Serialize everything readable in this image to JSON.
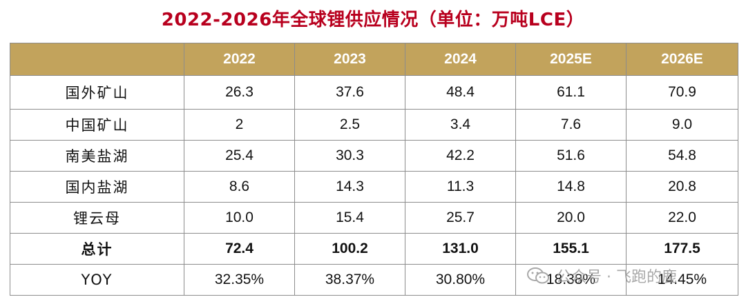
{
  "title": "2022-2026年全球锂供应情况（单位：万吨LCE）",
  "table": {
    "headers": [
      "",
      "2022",
      "2023",
      "2024",
      "2025E",
      "2026E"
    ],
    "rows": [
      {
        "label": "国外矿山",
        "values": [
          "26.3",
          "37.6",
          "48.4",
          "61.1",
          "70.9"
        ]
      },
      {
        "label": "中国矿山",
        "values": [
          "2",
          "2.5",
          "3.4",
          "7.6",
          "9.0"
        ]
      },
      {
        "label": "南美盐湖",
        "values": [
          "25.4",
          "30.3",
          "42.2",
          "51.6",
          "54.8"
        ]
      },
      {
        "label": "国内盐湖",
        "values": [
          "8.6",
          "14.3",
          "11.3",
          "14.8",
          "20.8"
        ]
      },
      {
        "label": "锂云母",
        "values": [
          "10.0",
          "15.4",
          "25.7",
          "20.0",
          "22.0"
        ]
      },
      {
        "label": "总计",
        "values": [
          "72.4",
          "100.2",
          "131.0",
          "155.1",
          "177.5"
        ]
      },
      {
        "label": "YOY",
        "values": [
          "32.35%",
          "38.37%",
          "30.80%",
          "18.38%",
          "14.45%"
        ]
      }
    ]
  },
  "watermark": {
    "text": "公众号 · 飞跑的鹿",
    "icon": "wechat-icon"
  },
  "colors": {
    "title": "#b8001e",
    "header_bg": "#c2a35c",
    "header_text": "#ffffff",
    "border": "#8c8c8c"
  }
}
